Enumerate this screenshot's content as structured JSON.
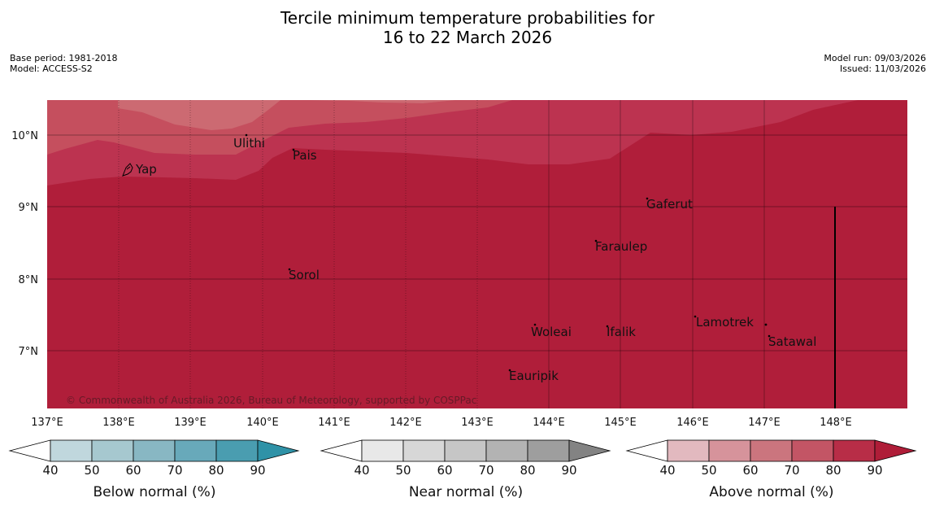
{
  "title": {
    "line1": "Tercile minimum temperature probabilities for",
    "line2": "16 to 22 March 2026"
  },
  "meta": {
    "base_period": "Base period: 1981-2018",
    "model": "Model: ACCESS-S2",
    "model_run": "Model run: 09/03/2026",
    "issued": "Issued: 11/03/2026"
  },
  "map": {
    "lat_labels": [
      "10°N",
      "9°N",
      "8°N",
      "7°N"
    ],
    "lon_labels": [
      "137°E",
      "138°E",
      "139°E",
      "140°E",
      "141°E",
      "142°E",
      "143°E",
      "144°E",
      "145°E",
      "146°E",
      "147°E",
      "148°E"
    ],
    "places": {
      "yap": "Yap",
      "ulithi": "Ulithi",
      "pais": "Pais",
      "gaferut": "Gaferut",
      "faraulep": "Faraulep",
      "sorol": "Sorol",
      "lamotrek": "Lamotrek",
      "woleai": "Woleai",
      "ifalik": "Ifalik",
      "satawal": "Satawal",
      "eauripik": "Eauripik"
    },
    "copyright": "© Commonwealth of Australia 2026, Bureau of Meteorology, supported by COSPPac",
    "field_colors": {
      "ge_90": "#b01e3a",
      "80_90": "#bc3350",
      "70_80": "#c54f5e",
      "60_70": "#cc6a72"
    }
  },
  "colorbars": {
    "ticks": [
      "40",
      "50",
      "60",
      "70",
      "80",
      "90"
    ],
    "below": {
      "label": "Below normal (%)",
      "colors": [
        "#c0d7dd",
        "#a6c8cf",
        "#88b7c3",
        "#68a9ba",
        "#4a9db0"
      ],
      "extend_color": "#2f92a7"
    },
    "near": {
      "label": "Near normal (%)",
      "colors": [
        "#e8e8e8",
        "#d7d7d7",
        "#c6c6c6",
        "#b3b3b3",
        "#9e9e9e"
      ],
      "extend_color": "#838383"
    },
    "above": {
      "label": "Above normal (%)",
      "colors": [
        "#e2b9bf",
        "#d6939b",
        "#cb757e",
        "#c35565",
        "#b82d47"
      ],
      "extend_color": "#af1d38"
    }
  }
}
